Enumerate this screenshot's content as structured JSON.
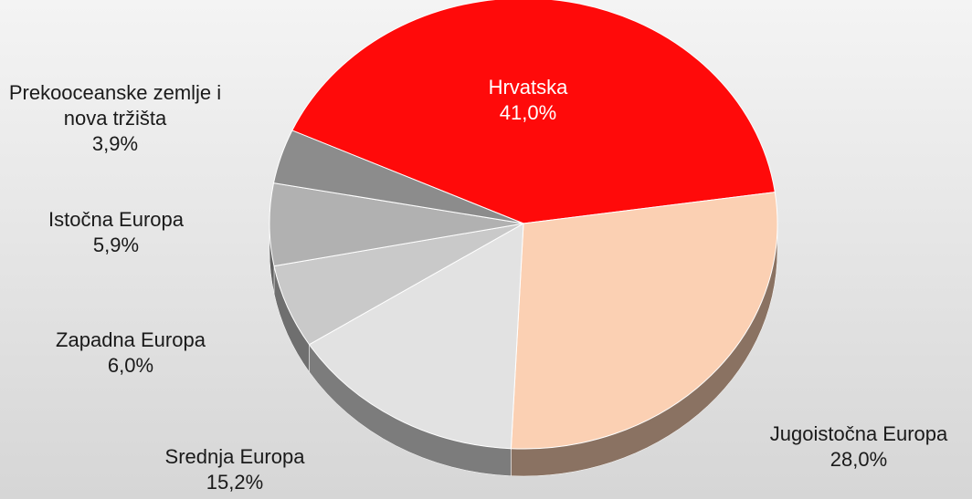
{
  "chart_data": {
    "type": "pie",
    "categories": [
      "Hrvatska",
      "Jugoistočna Europa",
      "Srednja Europa",
      "Zapadna Europa",
      "Istočna Europa",
      "Prekooceanske zemlje i nova tržišta"
    ],
    "values": [
      41.0,
      28.0,
      15.2,
      6.0,
      5.9,
      3.9
    ],
    "value_labels": [
      "41,0%",
      "28,0%",
      "15,2%",
      "6,0%",
      "5,9%",
      "3,9%"
    ],
    "colors": [
      "#ff0a0a",
      "#fbd0b3",
      "#e2e2e2",
      "#c9c9c9",
      "#b1b1b1",
      "#8c8c8c"
    ]
  }
}
